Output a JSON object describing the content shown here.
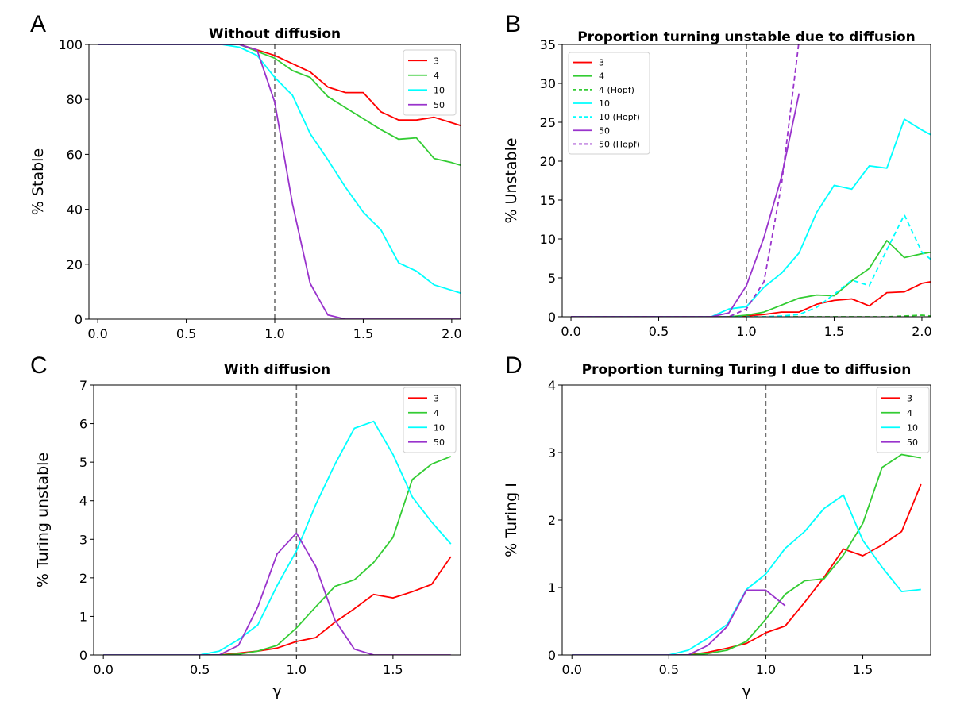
{
  "chart_data": [
    {
      "panel": "A",
      "type": "line",
      "title": "Without diffusion",
      "xlabel": "",
      "ylabel": "% Stable",
      "xlim": [
        -0.05,
        2.05
      ],
      "ylim": [
        0,
        100
      ],
      "xticks": [
        "0.0",
        "0.5",
        "1.0",
        "1.5",
        "2.0"
      ],
      "yticks": [
        "0",
        "20",
        "40",
        "60",
        "80",
        "100"
      ],
      "vline": 1.0,
      "legend_position": "top-right",
      "series": [
        {
          "name": "3",
          "color": "#ff0000",
          "style": "solid",
          "x": [
            0,
            0.1,
            0.2,
            0.3,
            0.4,
            0.5,
            0.6,
            0.7,
            0.8,
            0.9,
            1.0,
            1.1,
            1.2,
            1.3,
            1.4,
            1.5,
            1.6,
            1.7,
            1.8,
            1.9,
            2.0,
            2.05
          ],
          "y": [
            100,
            100,
            100,
            100,
            100,
            100,
            100,
            100,
            100,
            98,
            96,
            93,
            90,
            84.5,
            82.5,
            82.5,
            75.5,
            72.5,
            72.5,
            73.5,
            71.5,
            70.5
          ]
        },
        {
          "name": "4",
          "color": "#33cc33",
          "style": "solid",
          "x": [
            0,
            0.1,
            0.2,
            0.3,
            0.4,
            0.5,
            0.6,
            0.7,
            0.8,
            0.9,
            1.0,
            1.1,
            1.2,
            1.3,
            1.4,
            1.5,
            1.6,
            1.7,
            1.8,
            1.9,
            2.0,
            2.05
          ],
          "y": [
            100,
            100,
            100,
            100,
            100,
            100,
            100,
            100,
            100,
            97.5,
            95,
            90.5,
            88,
            81,
            77,
            73,
            69,
            65.5,
            66,
            58.5,
            57,
            56
          ]
        },
        {
          "name": "10",
          "color": "#00ffff",
          "style": "solid",
          "x": [
            0,
            0.1,
            0.2,
            0.3,
            0.4,
            0.5,
            0.6,
            0.7,
            0.8,
            0.9,
            1.0,
            1.1,
            1.2,
            1.3,
            1.4,
            1.5,
            1.6,
            1.7,
            1.8,
            1.9,
            2.0,
            2.05
          ],
          "y": [
            100,
            100,
            100,
            100,
            100,
            100,
            100,
            100,
            99,
            96,
            88,
            81.5,
            67.5,
            58,
            48,
            39,
            32.5,
            20.5,
            17.5,
            12.5,
            10.5,
            9.5
          ]
        },
        {
          "name": "50",
          "color": "#9933cc",
          "style": "solid",
          "x": [
            0,
            0.1,
            0.2,
            0.3,
            0.4,
            0.5,
            0.6,
            0.7,
            0.8,
            0.9,
            1.0,
            1.1,
            1.2,
            1.3,
            1.4,
            1.5,
            1.6,
            1.7,
            1.8,
            1.9,
            2.0,
            2.05
          ],
          "y": [
            100,
            100,
            100,
            100,
            100,
            100,
            100,
            100,
            100,
            98,
            79,
            42,
            13,
            1.5,
            0,
            0,
            0,
            0,
            0,
            0,
            0,
            0
          ]
        }
      ]
    },
    {
      "panel": "B",
      "type": "line",
      "title": "Proportion turning unstable due to diffusion",
      "xlabel": "",
      "ylabel": "% Unstable",
      "xlim": [
        -0.05,
        2.05
      ],
      "ylim": [
        0,
        35
      ],
      "xticks": [
        "0.0",
        "0.5",
        "1.0",
        "1.5",
        "2.0"
      ],
      "yticks": [
        "0",
        "5",
        "10",
        "15",
        "20",
        "25",
        "30",
        "35"
      ],
      "vline": 1.0,
      "legend_position": "top-left",
      "series": [
        {
          "name": "3",
          "color": "#ff0000",
          "style": "solid",
          "x": [
            0,
            0.1,
            0.2,
            0.3,
            0.4,
            0.5,
            0.6,
            0.7,
            0.8,
            0.9,
            1.0,
            1.1,
            1.2,
            1.3,
            1.4,
            1.5,
            1.6,
            1.7,
            1.8,
            1.9,
            2.0,
            2.05
          ],
          "y": [
            0,
            0,
            0,
            0,
            0,
            0,
            0,
            0,
            0,
            0,
            0.1,
            0.3,
            0.6,
            0.6,
            1.6,
            2.1,
            2.3,
            1.4,
            3.1,
            3.2,
            4.3,
            4.5
          ]
        },
        {
          "name": "4",
          "color": "#33cc33",
          "style": "solid",
          "x": [
            0,
            0.1,
            0.2,
            0.3,
            0.4,
            0.5,
            0.6,
            0.7,
            0.8,
            0.9,
            1.0,
            1.1,
            1.2,
            1.3,
            1.4,
            1.5,
            1.6,
            1.7,
            1.8,
            1.9,
            2.0,
            2.05
          ],
          "y": [
            0,
            0,
            0,
            0,
            0,
            0,
            0,
            0,
            0,
            0,
            0.2,
            0.6,
            1.5,
            2.4,
            2.8,
            2.7,
            4.6,
            6.2,
            9.8,
            7.6,
            8.1,
            8.3
          ]
        },
        {
          "name": "4 (Hopf)",
          "color": "#33cc33",
          "style": "dashed",
          "x": [
            0,
            0.1,
            0.2,
            0.3,
            0.4,
            0.5,
            0.6,
            0.7,
            0.8,
            0.9,
            1.0,
            1.1,
            1.2,
            1.3,
            1.4,
            1.5,
            1.6,
            1.7,
            1.8,
            1.9,
            2.0,
            2.05
          ],
          "y": [
            0,
            0,
            0,
            0,
            0,
            0,
            0,
            0,
            0,
            0,
            0,
            0,
            0,
            0,
            0,
            0,
            0,
            0,
            0,
            0.1,
            0.2,
            0.1
          ]
        },
        {
          "name": "10",
          "color": "#00ffff",
          "style": "solid",
          "x": [
            0,
            0.1,
            0.2,
            0.3,
            0.4,
            0.5,
            0.6,
            0.7,
            0.8,
            0.9,
            1.0,
            1.1,
            1.2,
            1.3,
            1.4,
            1.5,
            1.6,
            1.7,
            1.8,
            1.9,
            2.0,
            2.05
          ],
          "y": [
            0,
            0,
            0,
            0,
            0,
            0,
            0,
            0,
            0,
            1.0,
            1.3,
            3.8,
            5.6,
            8.2,
            13.4,
            16.9,
            16.4,
            19.4,
            19.1,
            25.4,
            24.0,
            23.4
          ]
        },
        {
          "name": "10 (Hopf)",
          "color": "#00ffff",
          "style": "dashed",
          "x": [
            0,
            0.1,
            0.2,
            0.3,
            0.4,
            0.5,
            0.6,
            0.7,
            0.8,
            0.9,
            1.0,
            1.1,
            1.2,
            1.3,
            1.4,
            1.5,
            1.6,
            1.7,
            1.8,
            1.9,
            2.0,
            2.05
          ],
          "y": [
            0,
            0,
            0,
            0,
            0,
            0,
            0,
            0,
            0,
            0,
            0,
            0,
            0.1,
            0.3,
            1.2,
            2.9,
            4.7,
            4.0,
            8.6,
            13.1,
            8.3,
            7.4
          ]
        },
        {
          "name": "50",
          "color": "#9933cc",
          "style": "solid",
          "x": [
            0,
            0.1,
            0.2,
            0.3,
            0.4,
            0.5,
            0.6,
            0.7,
            0.8,
            0.9,
            1.0,
            1.1,
            1.2,
            1.3
          ],
          "y": [
            0,
            0,
            0,
            0,
            0,
            0,
            0,
            0,
            0,
            0.5,
            4.0,
            10.2,
            18.0,
            28.7
          ]
        },
        {
          "name": "50 (Hopf)",
          "color": "#9933cc",
          "style": "dashed",
          "x": [
            0,
            0.1,
            0.2,
            0.3,
            0.4,
            0.5,
            0.6,
            0.7,
            0.8,
            0.9,
            1.0,
            1.1,
            1.2,
            1.3
          ],
          "y": [
            0,
            0,
            0,
            0,
            0,
            0,
            0,
            0,
            0,
            0,
            1.0,
            4.5,
            17.0,
            35.5
          ]
        }
      ]
    },
    {
      "panel": "C",
      "type": "line",
      "title": "With diffusion",
      "xlabel": "γ",
      "ylabel": "% Turing unstable",
      "xlim": [
        -0.05,
        1.85
      ],
      "ylim": [
        0,
        7
      ],
      "xticks": [
        "0.0",
        "0.5",
        "1.0",
        "1.5"
      ],
      "yticks": [
        "0",
        "1",
        "2",
        "3",
        "4",
        "5",
        "6",
        "7"
      ],
      "vline": 1.0,
      "legend_position": "top-right",
      "series": [
        {
          "name": "3",
          "color": "#ff0000",
          "style": "solid",
          "x": [
            0,
            0.1,
            0.2,
            0.3,
            0.4,
            0.5,
            0.6,
            0.7,
            0.8,
            0.9,
            1.0,
            1.1,
            1.2,
            1.3,
            1.4,
            1.5,
            1.6,
            1.7,
            1.8
          ],
          "y": [
            0,
            0,
            0,
            0,
            0,
            0,
            0,
            0.05,
            0.1,
            0.18,
            0.35,
            0.45,
            0.85,
            1.2,
            1.57,
            1.48,
            1.64,
            1.83,
            2.55
          ]
        },
        {
          "name": "4",
          "color": "#33cc33",
          "style": "solid",
          "x": [
            0,
            0.1,
            0.2,
            0.3,
            0.4,
            0.5,
            0.6,
            0.7,
            0.8,
            0.9,
            1.0,
            1.1,
            1.2,
            1.3,
            1.4,
            1.5,
            1.6,
            1.7,
            1.8
          ],
          "y": [
            0,
            0,
            0,
            0,
            0,
            0,
            0,
            0.02,
            0.1,
            0.25,
            0.7,
            1.25,
            1.78,
            1.95,
            2.4,
            3.05,
            4.55,
            4.95,
            5.15
          ]
        },
        {
          "name": "10",
          "color": "#00ffff",
          "style": "solid",
          "x": [
            0,
            0.1,
            0.2,
            0.3,
            0.4,
            0.5,
            0.6,
            0.7,
            0.8,
            0.9,
            1.0,
            1.1,
            1.2,
            1.3,
            1.4,
            1.5,
            1.6,
            1.7,
            1.8
          ],
          "y": [
            0,
            0,
            0,
            0,
            0,
            0,
            0.1,
            0.4,
            0.78,
            1.8,
            2.7,
            3.9,
            4.95,
            5.88,
            6.06,
            5.2,
            4.1,
            3.45,
            2.88
          ]
        },
        {
          "name": "50",
          "color": "#9933cc",
          "style": "solid",
          "x": [
            0,
            0.1,
            0.2,
            0.3,
            0.4,
            0.5,
            0.6,
            0.7,
            0.8,
            0.9,
            1.0,
            1.1,
            1.2,
            1.3,
            1.4,
            1.5,
            1.6,
            1.7,
            1.8
          ],
          "y": [
            0,
            0,
            0,
            0,
            0,
            0,
            0,
            0.25,
            1.25,
            2.62,
            3.16,
            2.3,
            0.9,
            0.15,
            0,
            0,
            0,
            0,
            0
          ]
        }
      ]
    },
    {
      "panel": "D",
      "type": "line",
      "title": "Proportion turning Turing I due to diffusion",
      "xlabel": "γ",
      "ylabel": "% Turing I",
      "xlim": [
        -0.05,
        1.85
      ],
      "ylim": [
        0,
        4
      ],
      "xticks": [
        "0.0",
        "0.5",
        "1.0",
        "1.5"
      ],
      "yticks": [
        "0",
        "1",
        "2",
        "3",
        "4"
      ],
      "vline": 1.0,
      "legend_position": "top-right",
      "series": [
        {
          "name": "3",
          "color": "#ff0000",
          "style": "solid",
          "x": [
            0,
            0.1,
            0.2,
            0.3,
            0.4,
            0.5,
            0.6,
            0.7,
            0.8,
            0.9,
            1.0,
            1.1,
            1.2,
            1.3,
            1.4,
            1.5,
            1.6,
            1.7,
            1.8
          ],
          "y": [
            0,
            0,
            0,
            0,
            0,
            0,
            0,
            0.04,
            0.1,
            0.17,
            0.33,
            0.43,
            0.78,
            1.15,
            1.57,
            1.47,
            1.63,
            1.83,
            2.53
          ]
        },
        {
          "name": "4",
          "color": "#33cc33",
          "style": "solid",
          "x": [
            0,
            0.1,
            0.2,
            0.3,
            0.4,
            0.5,
            0.6,
            0.7,
            0.8,
            0.9,
            1.0,
            1.1,
            1.2,
            1.3,
            1.4,
            1.5,
            1.6,
            1.7,
            1.8
          ],
          "y": [
            0,
            0,
            0,
            0,
            0,
            0,
            0,
            0.02,
            0.07,
            0.2,
            0.53,
            0.9,
            1.1,
            1.13,
            1.48,
            1.95,
            2.78,
            2.97,
            2.92
          ]
        },
        {
          "name": "10",
          "color": "#00ffff",
          "style": "solid",
          "x": [
            0,
            0.1,
            0.2,
            0.3,
            0.4,
            0.5,
            0.6,
            0.7,
            0.8,
            0.9,
            1.0,
            1.1,
            1.2,
            1.3,
            1.4,
            1.5,
            1.6,
            1.7,
            1.8
          ],
          "y": [
            0,
            0,
            0,
            0,
            0,
            0,
            0.07,
            0.25,
            0.45,
            0.97,
            1.2,
            1.58,
            1.83,
            2.17,
            2.37,
            1.7,
            1.3,
            0.94,
            0.97
          ]
        },
        {
          "name": "50",
          "color": "#9933cc",
          "style": "solid",
          "x": [
            0,
            0.1,
            0.2,
            0.3,
            0.4,
            0.5,
            0.6,
            0.7,
            0.8,
            0.9,
            1.0,
            1.1
          ],
          "y": [
            0,
            0,
            0,
            0,
            0,
            0,
            0,
            0.14,
            0.42,
            0.96,
            0.96,
            0.73
          ]
        }
      ]
    }
  ]
}
